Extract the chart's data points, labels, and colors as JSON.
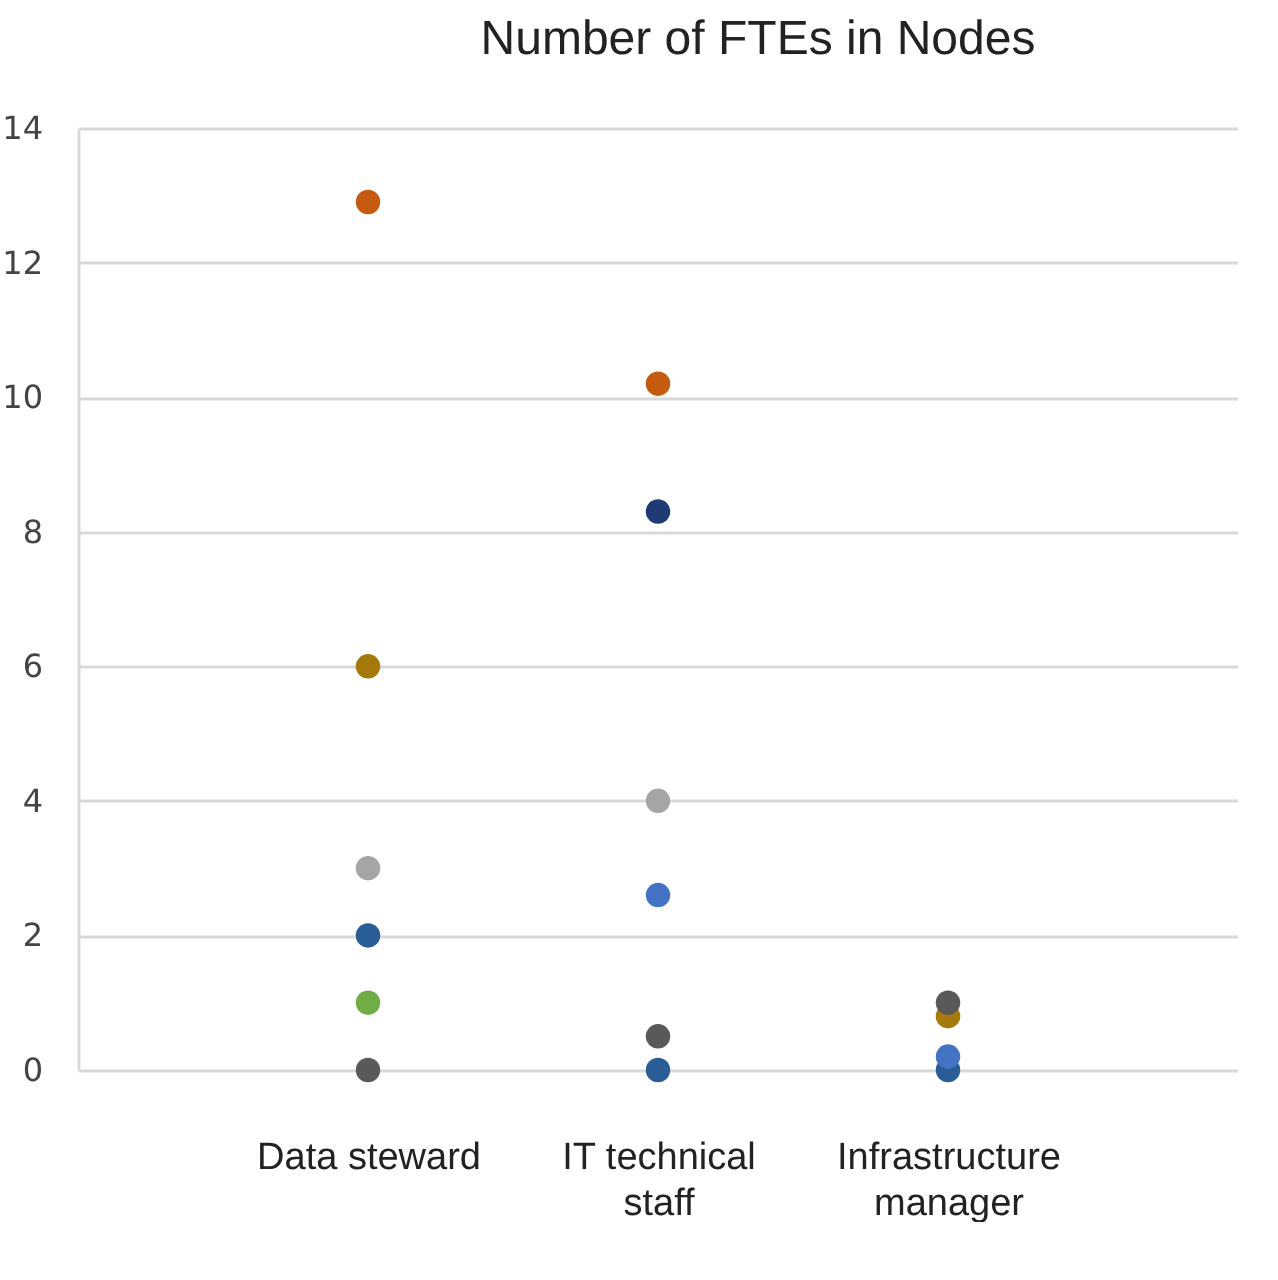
{
  "chart_data": {
    "type": "scatter",
    "title": "Number of FTEs in Nodes",
    "categories": [
      "Data steward",
      "IT technical staff",
      "Infrastructure manager"
    ],
    "series": [
      {
        "color": "#c55a11",
        "values": [
          12.9,
          10.2,
          null
        ]
      },
      {
        "color": "#a5790a",
        "values": [
          6,
          null,
          0.8
        ]
      },
      {
        "color": "#a5a5a5",
        "values": [
          3,
          4,
          null
        ]
      },
      {
        "color": "#2a5c96",
        "values": [
          2,
          0,
          0
        ]
      },
      {
        "color": "#70ad47",
        "values": [
          1,
          null,
          null
        ]
      },
      {
        "color": "#595959",
        "values": [
          0,
          0.5,
          1
        ]
      },
      {
        "color": "#1f3b73",
        "values": [
          null,
          8.3,
          null
        ]
      },
      {
        "color": "#4472c4",
        "values": [
          null,
          2.6,
          0.2
        ]
      }
    ],
    "ylim": [
      0,
      14
    ],
    "yticks": [
      0,
      2,
      4,
      6,
      8,
      10,
      12,
      14
    ],
    "grid": "y",
    "legend": false,
    "marker": "circle"
  }
}
